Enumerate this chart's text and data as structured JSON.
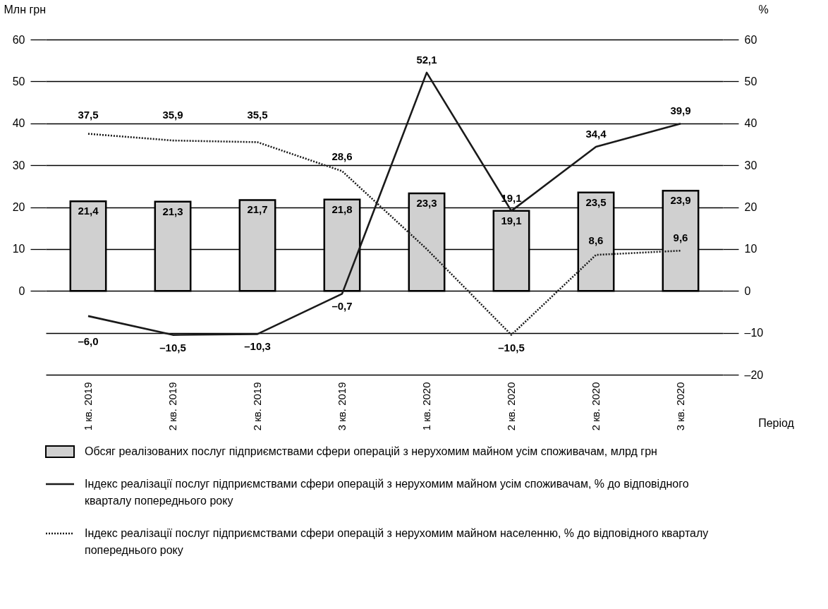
{
  "chart_data": {
    "type": "bar",
    "categories": [
      "1 кв. 2019",
      "2 кв. 2019",
      "2 кв. 2019",
      "3 кв. 2019",
      "1 кв. 2020",
      "2 кв. 2020",
      "2 кв. 2020",
      "3 кв. 2020"
    ],
    "xlabel": "Період",
    "ylabel": "Млн грн",
    "y2label": "%",
    "ylim": [
      -20,
      60
    ],
    "yticks": [
      0,
      10,
      20,
      30,
      40,
      50,
      60
    ],
    "y2lim": [
      -20,
      60
    ],
    "y2ticks": [
      {
        "value": -20,
        "label": "–20"
      },
      {
        "value": -10,
        "label": "–10"
      },
      0,
      10,
      20,
      30,
      40,
      50,
      60
    ],
    "grid": "y",
    "legend": "bottom",
    "series": [
      {
        "type": "bar",
        "name": "Обсяг реалізованих послуг підприємствами сфери операцій з нерухомим майном усім споживачам, млрд грн",
        "color": "#d0d0d0",
        "values": [
          21.4,
          21.3,
          21.7,
          21.8,
          23.3,
          19.1,
          23.5,
          23.9
        ],
        "value_labels": [
          "21,4",
          "21,3",
          "21,7",
          "21,8",
          "23,3",
          "19,1",
          "23,5",
          "23,9"
        ]
      },
      {
        "type": "line",
        "axis": "y2",
        "line_style": "solid",
        "name": "Індекс реалізації  послуг підприємствами сфери операцій з нерухомим майном усім споживачам, % до відповідного кварталу попереднього року",
        "color": "#1a1a1a",
        "values": [
          -6.0,
          -10.5,
          -10.3,
          -0.7,
          52.1,
          19.1,
          34.4,
          39.9
        ],
        "value_labels": [
          "–6,0",
          "–10,5",
          "–10,3",
          "–0,7",
          "52,1",
          "19,1",
          "34,4",
          "39,9"
        ]
      },
      {
        "type": "line",
        "axis": "y2",
        "line_style": "dotted",
        "name": "Індекс реалізації  послуг підприємствами сфери операцій з нерухомим майном населенню, % до відповідного кварталу попереднього року",
        "color": "#1a1a1a",
        "values": [
          37.5,
          35.9,
          35.5,
          28.6,
          10,
          -10.5,
          8.6,
          9.6
        ],
        "value_labels": [
          "37,5",
          "35,9",
          "35,5",
          "28,6",
          null,
          "–10,5",
          "8,6",
          "9,6"
        ]
      }
    ]
  }
}
